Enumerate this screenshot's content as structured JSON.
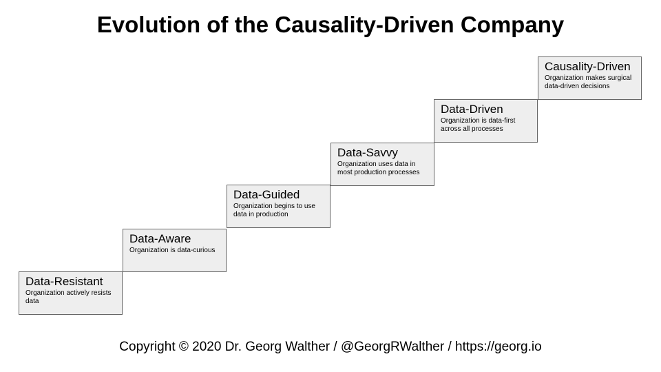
{
  "title": "Evolution of the Causality-Driven Company",
  "steps": [
    {
      "title": "Data-Resistant",
      "description": "Organization actively resists data"
    },
    {
      "title": "Data-Aware",
      "description": "Organization is data-curious"
    },
    {
      "title": "Data-Guided",
      "description": "Organization begins to use data in production"
    },
    {
      "title": "Data-Savvy",
      "description": "Organization uses data in most production processes"
    },
    {
      "title": "Data-Driven",
      "description": "Organization is data-first across all processes"
    },
    {
      "title": "Causality-Driven",
      "description": "Organization makes surgical data-driven decisions"
    }
  ],
  "footer": "Copyright © 2020 Dr. Georg Walther / @GeorgRWalther / https://georg.io",
  "colors": {
    "box_fill": "#eeeeee",
    "box_border": "#666666",
    "text": "#000000",
    "background": "#ffffff"
  }
}
